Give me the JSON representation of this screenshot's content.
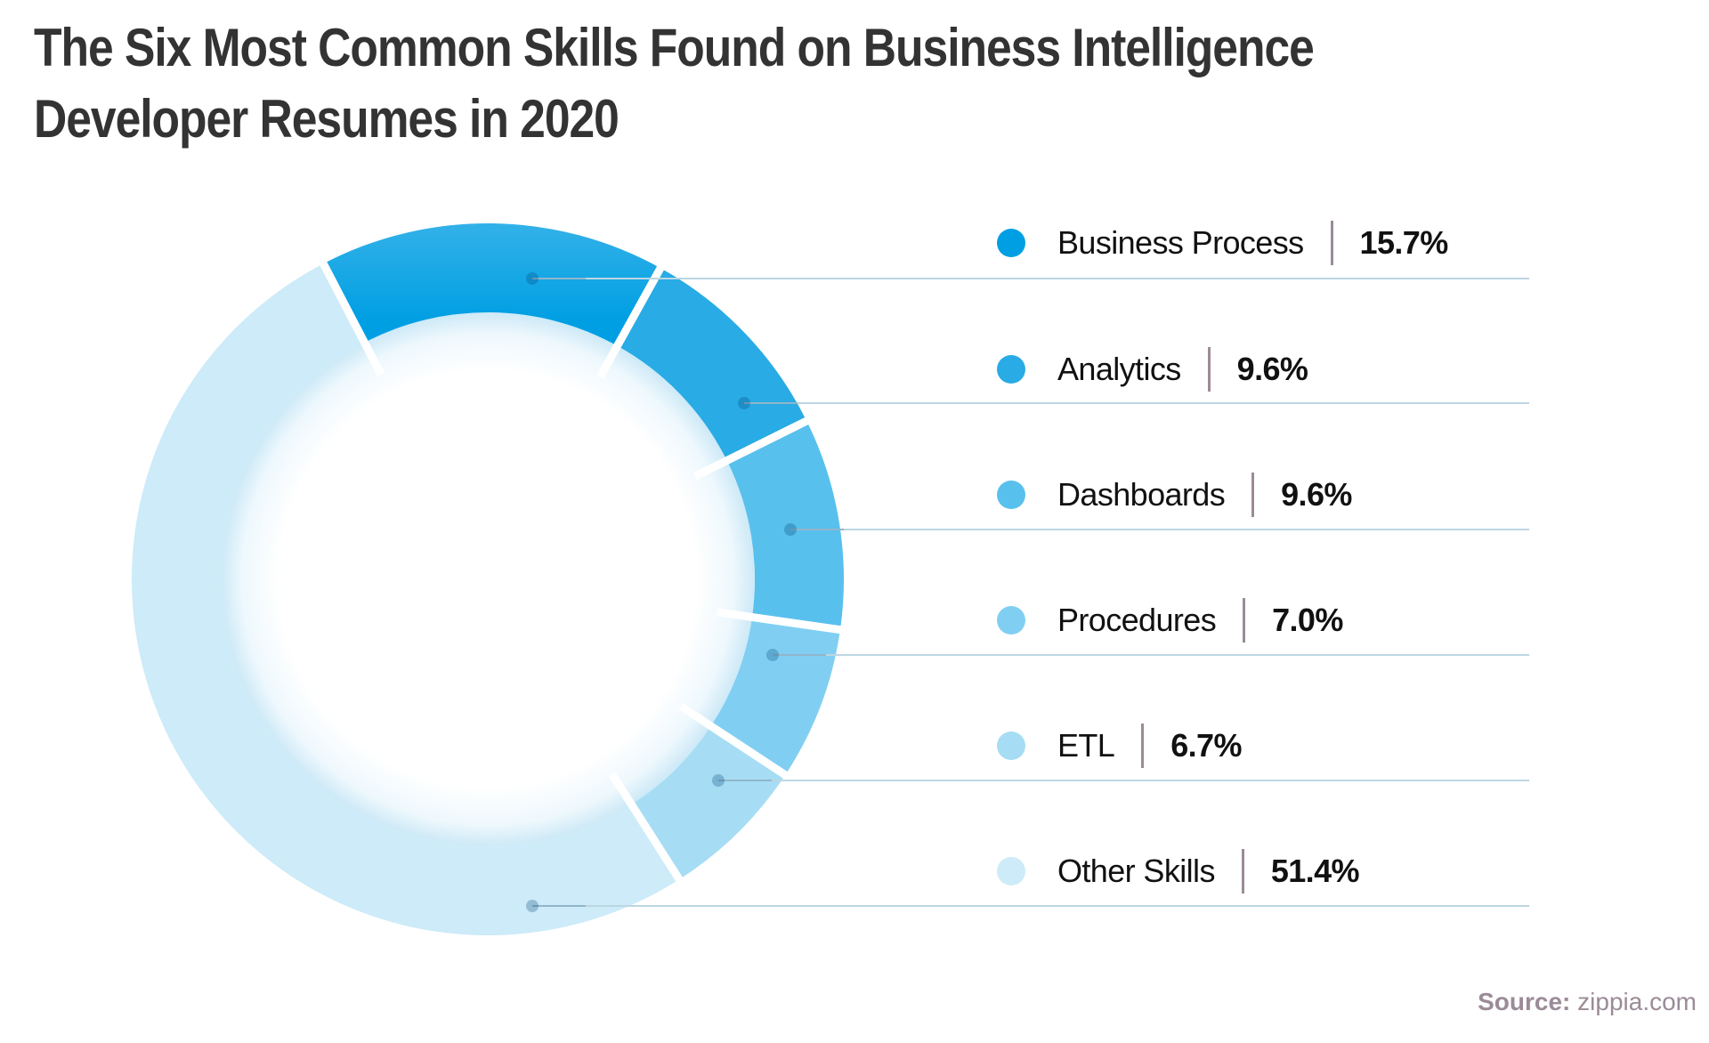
{
  "title": {
    "line1": "The Six Most Common Skills Found on Business Intelligence",
    "line2": "Developer Resumes in 2020"
  },
  "source": {
    "label": "Source:",
    "value": "zippia.com"
  },
  "colors": {
    "title": "#333333",
    "separator": "#9b8b97",
    "leader_line": "#bcd6e2",
    "gap": "#ffffff"
  },
  "chart_data": {
    "type": "pie",
    "variant": "donut",
    "title": "The Six Most Common Skills Found on Business Intelligence Developer Resumes in 2020",
    "categories": [
      "Business Process",
      "Analytics",
      "Dashboards",
      "Procedures",
      "ETL",
      "Other Skills"
    ],
    "values": [
      15.7,
      9.6,
      9.6,
      7.0,
      6.7,
      51.4
    ],
    "unit": "%",
    "colors": [
      "#009fe3",
      "#29abe5",
      "#58c0ed",
      "#80cff2",
      "#a6ddf4",
      "#cdebf8"
    ],
    "legend_position": "right",
    "source": "zippia.com"
  },
  "legend": [
    {
      "label": "Business Process",
      "value": "15.7%",
      "color": "#009fe3"
    },
    {
      "label": "Analytics",
      "value": "9.6%",
      "color": "#29abe5"
    },
    {
      "label": "Dashboards",
      "value": "9.6%",
      "color": "#58c0ed"
    },
    {
      "label": "Procedures",
      "value": "7.0%",
      "color": "#80cff2"
    },
    {
      "label": "ETL",
      "value": "6.7%",
      "color": "#a6ddf4"
    },
    {
      "label": "Other Skills",
      "value": "51.4%",
      "color": "#cdebf8"
    }
  ]
}
